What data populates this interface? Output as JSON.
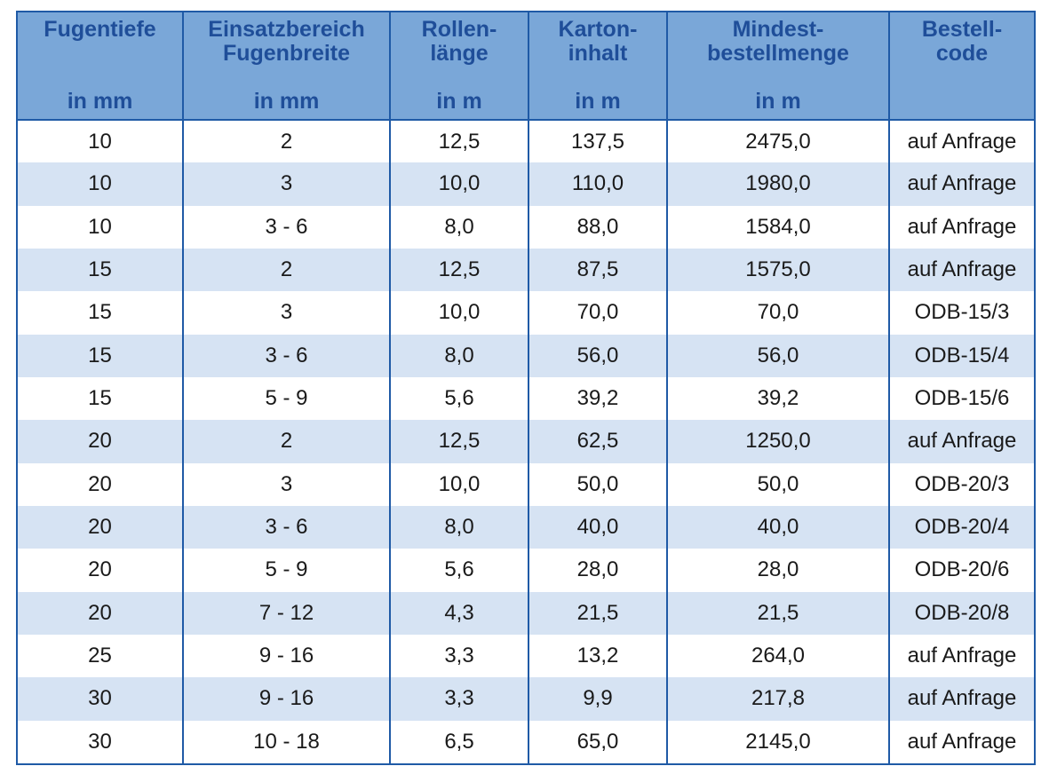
{
  "table": {
    "headers": [
      {
        "lines": [
          "Fugentiefe"
        ],
        "unit": "in mm"
      },
      {
        "lines": [
          "Einsatzbereich",
          "Fugenbreite"
        ],
        "unit": "in mm"
      },
      {
        "lines": [
          "Rollen-",
          "länge"
        ],
        "unit": "in m"
      },
      {
        "lines": [
          "Karton-",
          "inhalt"
        ],
        "unit": "in m"
      },
      {
        "lines": [
          "Mindest-",
          "bestellmenge"
        ],
        "unit": "in m"
      },
      {
        "lines": [
          "Bestell-",
          "code"
        ],
        "unit": ""
      }
    ],
    "rows": [
      [
        "10",
        "2",
        "12,5",
        "137,5",
        "2475,0",
        "auf Anfrage"
      ],
      [
        "10",
        "3",
        "10,0",
        "110,0",
        "1980,0",
        "auf Anfrage"
      ],
      [
        "10",
        "3 - 6",
        "8,0",
        "88,0",
        "1584,0",
        "auf Anfrage"
      ],
      [
        "15",
        "2",
        "12,5",
        "87,5",
        "1575,0",
        "auf Anfrage"
      ],
      [
        "15",
        "3",
        "10,0",
        "70,0",
        "70,0",
        "ODB-15/3"
      ],
      [
        "15",
        "3 - 6",
        "8,0",
        "56,0",
        "56,0",
        "ODB-15/4"
      ],
      [
        "15",
        "5 - 9",
        "5,6",
        "39,2",
        "39,2",
        "ODB-15/6"
      ],
      [
        "20",
        "2",
        "12,5",
        "62,5",
        "1250,0",
        "auf Anfrage"
      ],
      [
        "20",
        "3",
        "10,0",
        "50,0",
        "50,0",
        "ODB-20/3"
      ],
      [
        "20",
        "3 - 6",
        "8,0",
        "40,0",
        "40,0",
        "ODB-20/4"
      ],
      [
        "20",
        "5 - 9",
        "5,6",
        "28,0",
        "28,0",
        "ODB-20/6"
      ],
      [
        "20",
        "7 - 12",
        "4,3",
        "21,5",
        "21,5",
        "ODB-20/8"
      ],
      [
        "25",
        "9 - 16",
        "3,3",
        "13,2",
        "264,0",
        "auf Anfrage"
      ],
      [
        "30",
        "9 - 16",
        "3,3",
        "9,9",
        "217,8",
        "auf Anfrage"
      ],
      [
        "30",
        "10 - 18",
        "6,5",
        "65,0",
        "2145,0",
        "auf Anfrage"
      ]
    ]
  },
  "colors": {
    "header_bg": "#7aa7d8",
    "header_text": "#1f4e99",
    "border": "#1f5aa6",
    "stripe": "#d6e3f3"
  }
}
